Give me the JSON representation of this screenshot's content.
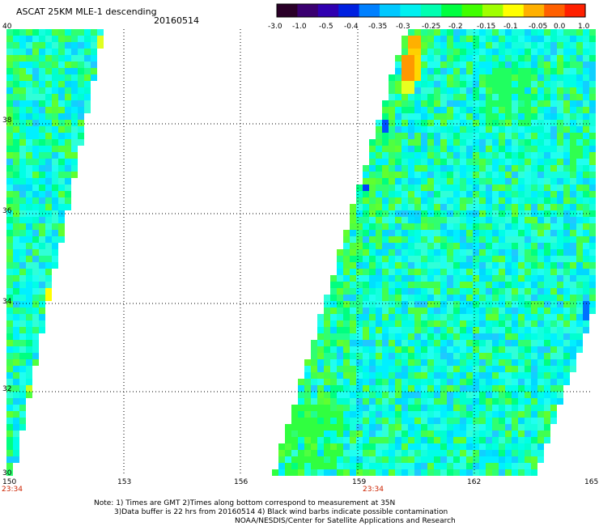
{
  "header": {
    "title": "ASCAT 25KM MLE-1 descending",
    "date": "20160514"
  },
  "colorbar": {
    "colors": [
      "#2a0028",
      "#3a0070",
      "#3000b0",
      "#0020e0",
      "#0080ff",
      "#00c8ff",
      "#00f0f0",
      "#00ffb0",
      "#00ff40",
      "#40ff00",
      "#a0ff00",
      "#ffff00",
      "#ffb000",
      "#ff6000",
      "#ff2000"
    ],
    "tick_labels": [
      "-3.0",
      "-1.0",
      "-0.5",
      "-0.4",
      "-0.35",
      "-0.3",
      "-0.25",
      "-0.2",
      "-0.15",
      "-0.1",
      "-0.05",
      "0.0",
      "1.0"
    ]
  },
  "axes": {
    "x_ticks": [
      "150",
      "153",
      "156",
      "159",
      "162",
      "165"
    ],
    "y_ticks": [
      "40",
      "38",
      "36",
      "34",
      "32",
      "30"
    ],
    "lon_range": [
      150,
      165
    ],
    "lat_range": [
      30,
      40
    ],
    "grid": "dotted"
  },
  "swaths": {
    "time_labels": [
      "23:34",
      "23:34"
    ]
  },
  "notes": [
    "Note: 1) Times are GMT 2)Times along bottom correspond to measurement at 35N",
    "3)Data buffer is 22 hrs from 20160514 4) Black wind barbs indicate possible contamination",
    "NOAA/NESDIS/Center for Satellite Applications and Research"
  ]
}
